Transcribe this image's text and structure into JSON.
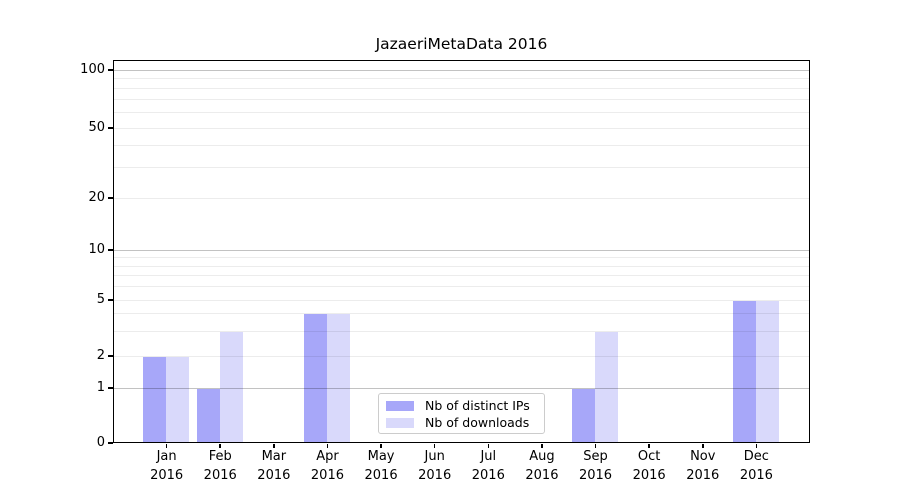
{
  "chart_data": {
    "type": "bar",
    "title": "JazaeriMetaData 2016",
    "categories": [
      "Jan",
      "Feb",
      "Mar",
      "Apr",
      "May",
      "Jun",
      "Jul",
      "Aug",
      "Sep",
      "Oct",
      "Nov",
      "Dec"
    ],
    "category_year_label": "2016",
    "series": [
      {
        "name": "Nb of distinct IPs",
        "color": "#a7a7f9",
        "values": [
          2,
          1,
          0,
          4,
          0,
          0,
          0,
          0,
          1,
          0,
          0,
          5
        ]
      },
      {
        "name": "Nb of downloads",
        "color": "#d9d9fb",
        "values": [
          2,
          3,
          0,
          4,
          0,
          0,
          0,
          0,
          3,
          0,
          0,
          5
        ]
      }
    ],
    "xlabel": "",
    "ylabel": "",
    "y_ticks": [
      0,
      1,
      2,
      5,
      10,
      20,
      50,
      100
    ],
    "ylim": [
      0,
      110
    ],
    "y_scale": "log-like (0 baseline, log spacing above 1)",
    "grid": "horizontal major+minor",
    "legend_position": "inside bottom-center"
  }
}
